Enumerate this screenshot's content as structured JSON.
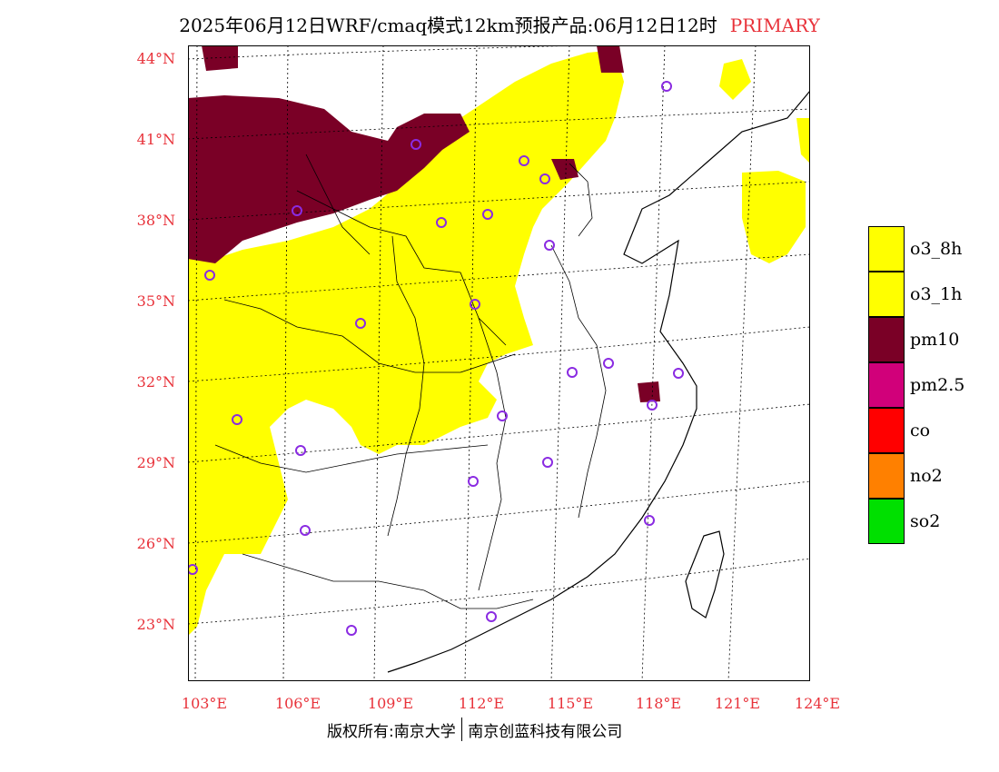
{
  "title": {
    "main": "2025年06月12日WRF/cmaq模式12km预报产品:06月12日12时",
    "tag": "PRIMARY"
  },
  "axes": {
    "lat_labels": [
      "44°N",
      "41°N",
      "38°N",
      "35°N",
      "32°N",
      "29°N",
      "26°N",
      "23°N"
    ],
    "lon_labels": [
      "103°E",
      "106°E",
      "109°E",
      "112°E",
      "115°E",
      "118°E",
      "121°E",
      "124°E"
    ]
  },
  "footer": {
    "left": "版权所有:南京大学",
    "right": "南京创蓝科技有限公司"
  },
  "legend": [
    {
      "label": "o3_8h",
      "color": "#ffff00"
    },
    {
      "label": "o3_1h",
      "color": "#ffff00"
    },
    {
      "label": "pm10",
      "color": "#7a0026"
    },
    {
      "label": "pm2.5",
      "color": "#d1007a"
    },
    {
      "label": "co",
      "color": "#ff0000"
    },
    {
      "label": "no2",
      "color": "#ff8000"
    },
    {
      "label": "so2",
      "color": "#00e000"
    }
  ],
  "colors": {
    "accent_label": "#e8323a",
    "station_marker": "#8a2be2"
  }
}
